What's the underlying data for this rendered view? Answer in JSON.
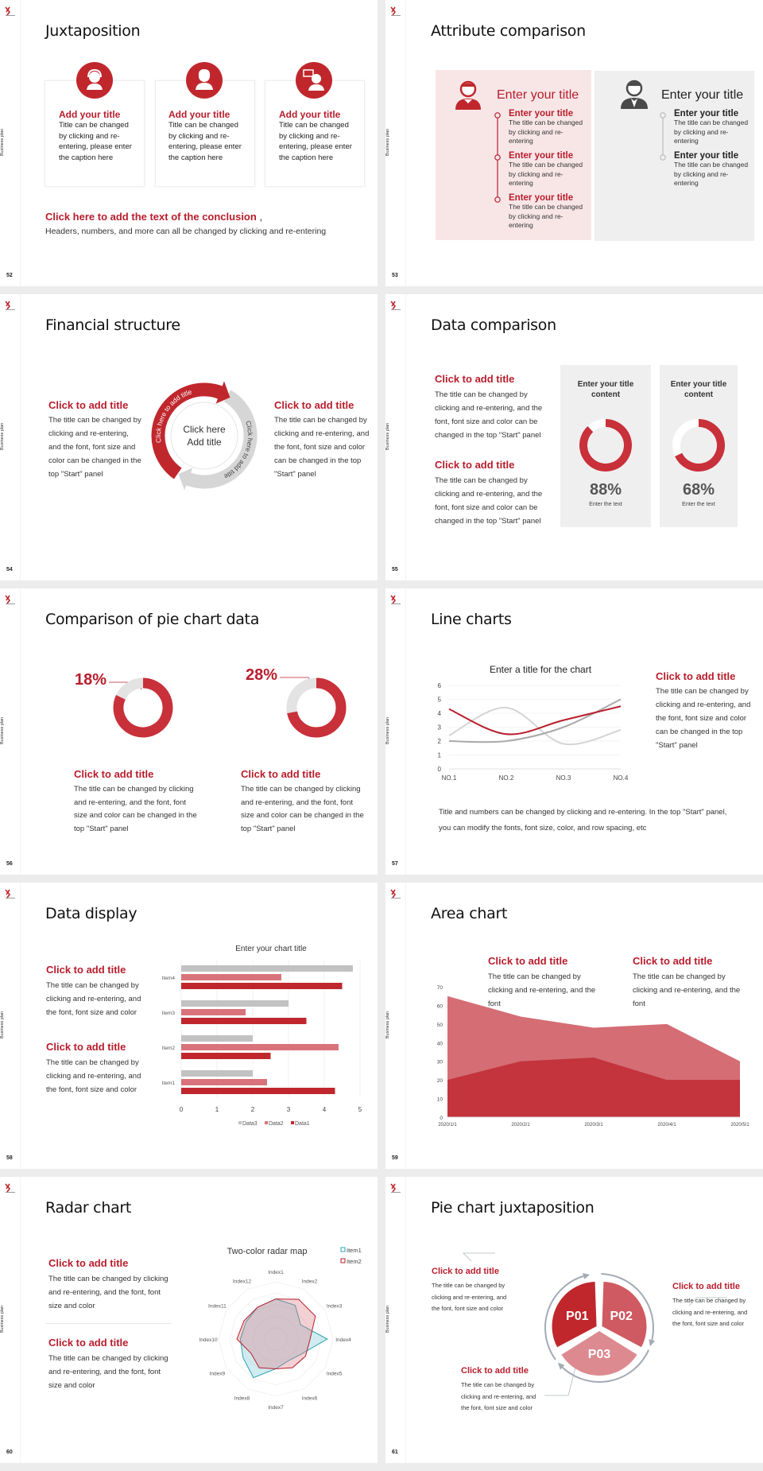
{
  "side_label": "Business plan",
  "colors": {
    "accent": "#b81d2c",
    "donut_red": "#c8303a",
    "pink_panel": "#f8e6e7",
    "gray_panel": "#efefef",
    "teal": "#2aa1b3",
    "gray_line": "#9aa3ad"
  },
  "slides": [
    {
      "page": "52",
      "title": "Juxtaposition",
      "cards": [
        {
          "icon": "customer-service-icon",
          "title": "Add your title",
          "body": "Title can be changed by clicking and re-entering, please enter the caption here"
        },
        {
          "icon": "businesswoman-icon",
          "title": "Add your title",
          "body": "Title can be changed by clicking and re-entering, please enter the caption here"
        },
        {
          "icon": "consultant-chat-icon",
          "title": "Add your title",
          "body": "Title can be changed by clicking and re-entering, please enter the caption here"
        }
      ],
      "conclusion": {
        "title": "Click here to add the text of the conclusion",
        "comma": ",",
        "body": "Headers, numbers, and more can all be changed by clicking and re-entering"
      }
    },
    {
      "page": "53",
      "title": "Attribute comparison",
      "left": {
        "title": "Enter your title",
        "items": [
          {
            "title": "Enter your title",
            "body": "The title can be changed by clicking and re-entering"
          },
          {
            "title": "Enter your title",
            "body": "The title can be changed by clicking and re-entering"
          },
          {
            "title": "Enter your title",
            "body": "The title can be changed by clicking and re-entering"
          }
        ]
      },
      "right": {
        "title": "Enter your title",
        "items": [
          {
            "title": "Enter your title",
            "body": "The title can be changed by clicking and re-entering"
          },
          {
            "title": "Enter your title",
            "body": "The title can be changed by clicking and re-entering"
          }
        ]
      }
    },
    {
      "page": "54",
      "title": "Financial structure",
      "left": {
        "title": "Click to add title",
        "body": "The title can be changed by clicking and re-entering, and the font, font size and color can be changed in the top \"Start\" panel"
      },
      "right": {
        "title": "Click to add title",
        "body": "The title can be changed by clicking and re-entering, and the font, font size and color can be changed in the top \"Start\" panel"
      },
      "cycle": {
        "center_line1": "Click here",
        "center_line2": "Add title",
        "arc_red": "Click here to add title",
        "arc_gray": "Click here to add title"
      }
    },
    {
      "page": "55",
      "title": "Data comparison",
      "blocks": [
        {
          "title": "Click to add title",
          "body": "The title can be changed by clicking and re-entering, and the font, font size and color can be changed in the top \"Start\" panel"
        },
        {
          "title": "Click to add title",
          "body": "The title can be changed by clicking and re-entering, and the font, font size and color can be changed in the top \"Start\" panel"
        }
      ],
      "cards": [
        {
          "title": "Enter your title content",
          "percent": "88%",
          "caption": "Enter the text"
        },
        {
          "title": "Enter your title content",
          "percent": "68%",
          "caption": "Enter the text"
        }
      ]
    },
    {
      "page": "56",
      "title": "Comparison of pie chart data",
      "items": [
        {
          "percent": "18%",
          "title": "Click to add title",
          "body": "The title can be changed by clicking and re-entering, and the font, font size and color can be changed in the top \"Start\" panel"
        },
        {
          "percent": "28%",
          "title": "Click to add title",
          "body": "The title can be changed by clicking and re-entering, and the font, font size and color can be changed in the top \"Start\" panel"
        }
      ]
    },
    {
      "page": "57",
      "title": "Line charts",
      "side": {
        "title": "Click to add title",
        "body": "The title can be changed by clicking and re-entering, and the font, font size and color can be changed in the top \"Start\" panel"
      },
      "footer": "Title and numbers can be changed by clicking and re-entering. In the top \"Start\" panel, you can modify the fonts, font size, color, and row spacing, etc"
    },
    {
      "page": "58",
      "title": "Data display",
      "blocks": [
        {
          "title": "Click to add title",
          "body": "The title can be changed by clicking and re-entering, and the font, font size and color"
        },
        {
          "title": "Click to add title",
          "body": "The title can be changed by clicking and re-entering, and the font, font size and color"
        }
      ]
    },
    {
      "page": "59",
      "title": "Area chart",
      "blocks": [
        {
          "title": "Click to add title",
          "body": "The title can be changed by clicking and re-entering, and the font"
        },
        {
          "title": "Click to add title",
          "body": "The title can be changed by clicking and re-entering, and the font"
        }
      ]
    },
    {
      "page": "60",
      "title": "Radar chart",
      "blocks": [
        {
          "title": "Click to add title",
          "body": "The title can be changed by clicking and re-entering, and the font, font size and color"
        },
        {
          "title": "Click to add title",
          "body": "The title can be changed by clicking and re-entering, and the font, font size and color"
        }
      ]
    },
    {
      "page": "61",
      "title": "Pie chart juxtaposition",
      "blocks": [
        {
          "title": "Click to add title",
          "body": "The title can be changed by clicking and re-entering, and the font, font size and color"
        },
        {
          "title": "Click to add title",
          "body": "The title can be changed by clicking and re-entering, and the font, font size and color"
        },
        {
          "title": "Click to add title",
          "body": "The title can be changed by clicking and re-entering, and the font, font size and color"
        }
      ]
    }
  ],
  "chart_data": [
    {
      "type": "pie",
      "variant": "donut",
      "values": [
        88,
        68
      ],
      "labels": [
        "88%",
        "68%"
      ]
    },
    {
      "type": "pie",
      "variant": "donut",
      "values": [
        18,
        28
      ],
      "labels": [
        "18%",
        "28%"
      ]
    },
    {
      "type": "line",
      "title": "Enter a title for the chart",
      "categories": [
        "NO.1",
        "NO.2",
        "NO.3",
        "NO.4"
      ],
      "ylim": [
        0,
        6
      ],
      "yticks": [
        0,
        1,
        2,
        3,
        4,
        5,
        6
      ],
      "grid": true,
      "smooth": true,
      "series": [
        {
          "color": "#b81d2c",
          "values": [
            4.3,
            2.5,
            3.5,
            4.5
          ]
        },
        {
          "color": "#d4d4d4",
          "values": [
            2.4,
            4.4,
            1.8,
            2.8
          ]
        },
        {
          "color": "#a9a9a9",
          "values": [
            2.0,
            2.0,
            3.0,
            5.0
          ]
        }
      ]
    },
    {
      "type": "bar",
      "orientation": "horizontal",
      "title": "Enter your chart title",
      "categories": [
        "Item1",
        "Item2",
        "Item3",
        "Item4"
      ],
      "xlim": [
        0,
        5
      ],
      "xticks": [
        0,
        1,
        2,
        3,
        4,
        5
      ],
      "grid": true,
      "legend": "bottom",
      "series": [
        {
          "name": "Data3",
          "color": "#c2c2c2",
          "values": [
            2,
            2,
            3,
            4.8
          ]
        },
        {
          "name": "Data2",
          "color": "#d9737b",
          "values": [
            2.4,
            4.4,
            1.8,
            2.8
          ]
        },
        {
          "name": "Data1",
          "color": "#c0272d",
          "values": [
            4.3,
            2.5,
            3.5,
            4.5
          ]
        }
      ]
    },
    {
      "type": "area",
      "categories": [
        "2020/1/1",
        "2020/2/1",
        "2020/3/1",
        "2020/4/1",
        "2020/5/1"
      ],
      "ylim": [
        0,
        70
      ],
      "yticks": [
        0,
        10,
        20,
        30,
        40,
        50,
        60,
        70
      ],
      "series": [
        {
          "color": "#d56d74",
          "values": [
            65,
            54,
            48,
            50,
            30
          ]
        },
        {
          "color": "#c3343d",
          "values": [
            20,
            30,
            32,
            20,
            20
          ]
        }
      ]
    },
    {
      "type": "radar",
      "title": "Two-color radar map",
      "categories": [
        "Index1",
        "Index2",
        "Index3",
        "Index4",
        "Index5",
        "Index6",
        "Index7",
        "Index8",
        "Index9",
        "Index10",
        "Index11",
        "Index12"
      ],
      "rlim": [
        0,
        5
      ],
      "legend": "top-right",
      "series": [
        {
          "name": "Item1",
          "color": "#2aa1b3",
          "values": [
            3.5,
            3.4,
            2.5,
            4.5,
            2.6,
            2.2,
            2.6,
            3.9,
            3.3,
            3.1,
            3.0,
            3.2
          ]
        },
        {
          "name": "Item2",
          "color": "#b81d2c",
          "values": [
            3.5,
            4.0,
            4.0,
            3.0,
            3.0,
            2.9,
            2.6,
            2.9,
            2.5,
            3.4,
            3.2,
            3.2
          ]
        }
      ]
    },
    {
      "type": "pie",
      "categories": [
        "P01",
        "P02",
        "P03"
      ],
      "values": [
        1,
        1,
        1
      ],
      "colors": [
        "#c0272d",
        "#cf5a62",
        "#dc8a90"
      ]
    }
  ]
}
